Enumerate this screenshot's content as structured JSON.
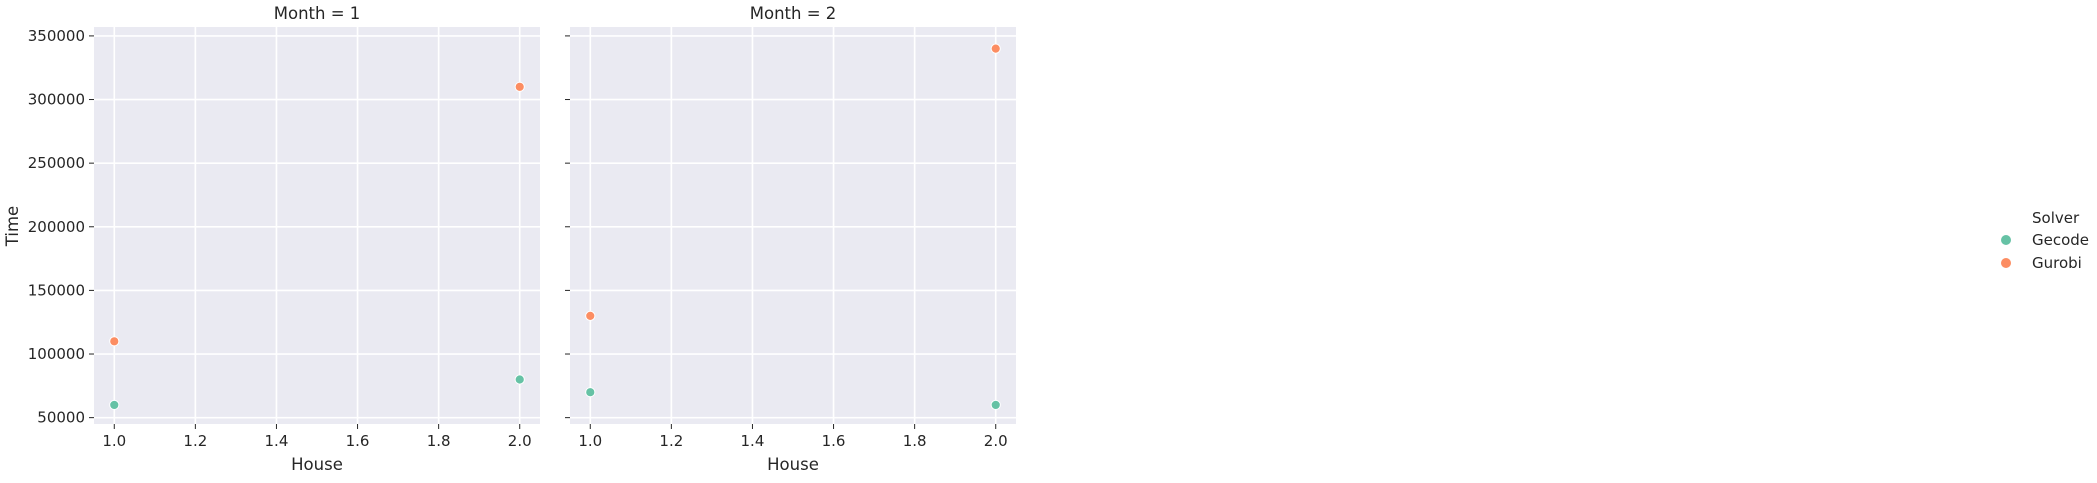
{
  "chart_data": {
    "type": "scatter",
    "xlabel": "House",
    "ylabel": "Time",
    "xlim": [
      0.95,
      2.05
    ],
    "ylim": [
      45000,
      357000
    ],
    "xticks": [
      1.0,
      1.2,
      1.4,
      1.6,
      1.8,
      2.0
    ],
    "xtick_labels": [
      "1.0",
      "1.2",
      "1.4",
      "1.6",
      "1.8",
      "2.0"
    ],
    "yticks": [
      50000,
      100000,
      150000,
      200000,
      250000,
      300000,
      350000
    ],
    "ytick_labels": [
      "50000",
      "100000",
      "150000",
      "200000",
      "250000",
      "300000",
      "350000"
    ],
    "grid": true,
    "legend": {
      "title": "Solver",
      "placement": "right",
      "entries": [
        {
          "name": "Gecode",
          "color": "#66c2a5"
        },
        {
          "name": "Gurobi",
          "color": "#fc8d62"
        }
      ]
    },
    "panels": [
      {
        "title": "Month = 1",
        "series": [
          {
            "name": "Gecode",
            "color": "#66c2a5",
            "points": [
              {
                "x": 1.0,
                "y": 60000
              },
              {
                "x": 2.0,
                "y": 80000
              }
            ]
          },
          {
            "name": "Gurobi",
            "color": "#fc8d62",
            "points": [
              {
                "x": 1.0,
                "y": 110000
              },
              {
                "x": 2.0,
                "y": 310000
              }
            ]
          }
        ]
      },
      {
        "title": "Month = 2",
        "series": [
          {
            "name": "Gecode",
            "color": "#66c2a5",
            "points": [
              {
                "x": 1.0,
                "y": 70000
              },
              {
                "x": 2.0,
                "y": 60000
              }
            ]
          },
          {
            "name": "Gurobi",
            "color": "#fc8d62",
            "points": [
              {
                "x": 1.0,
                "y": 130000
              },
              {
                "x": 2.0,
                "y": 340000
              }
            ]
          }
        ]
      }
    ]
  }
}
